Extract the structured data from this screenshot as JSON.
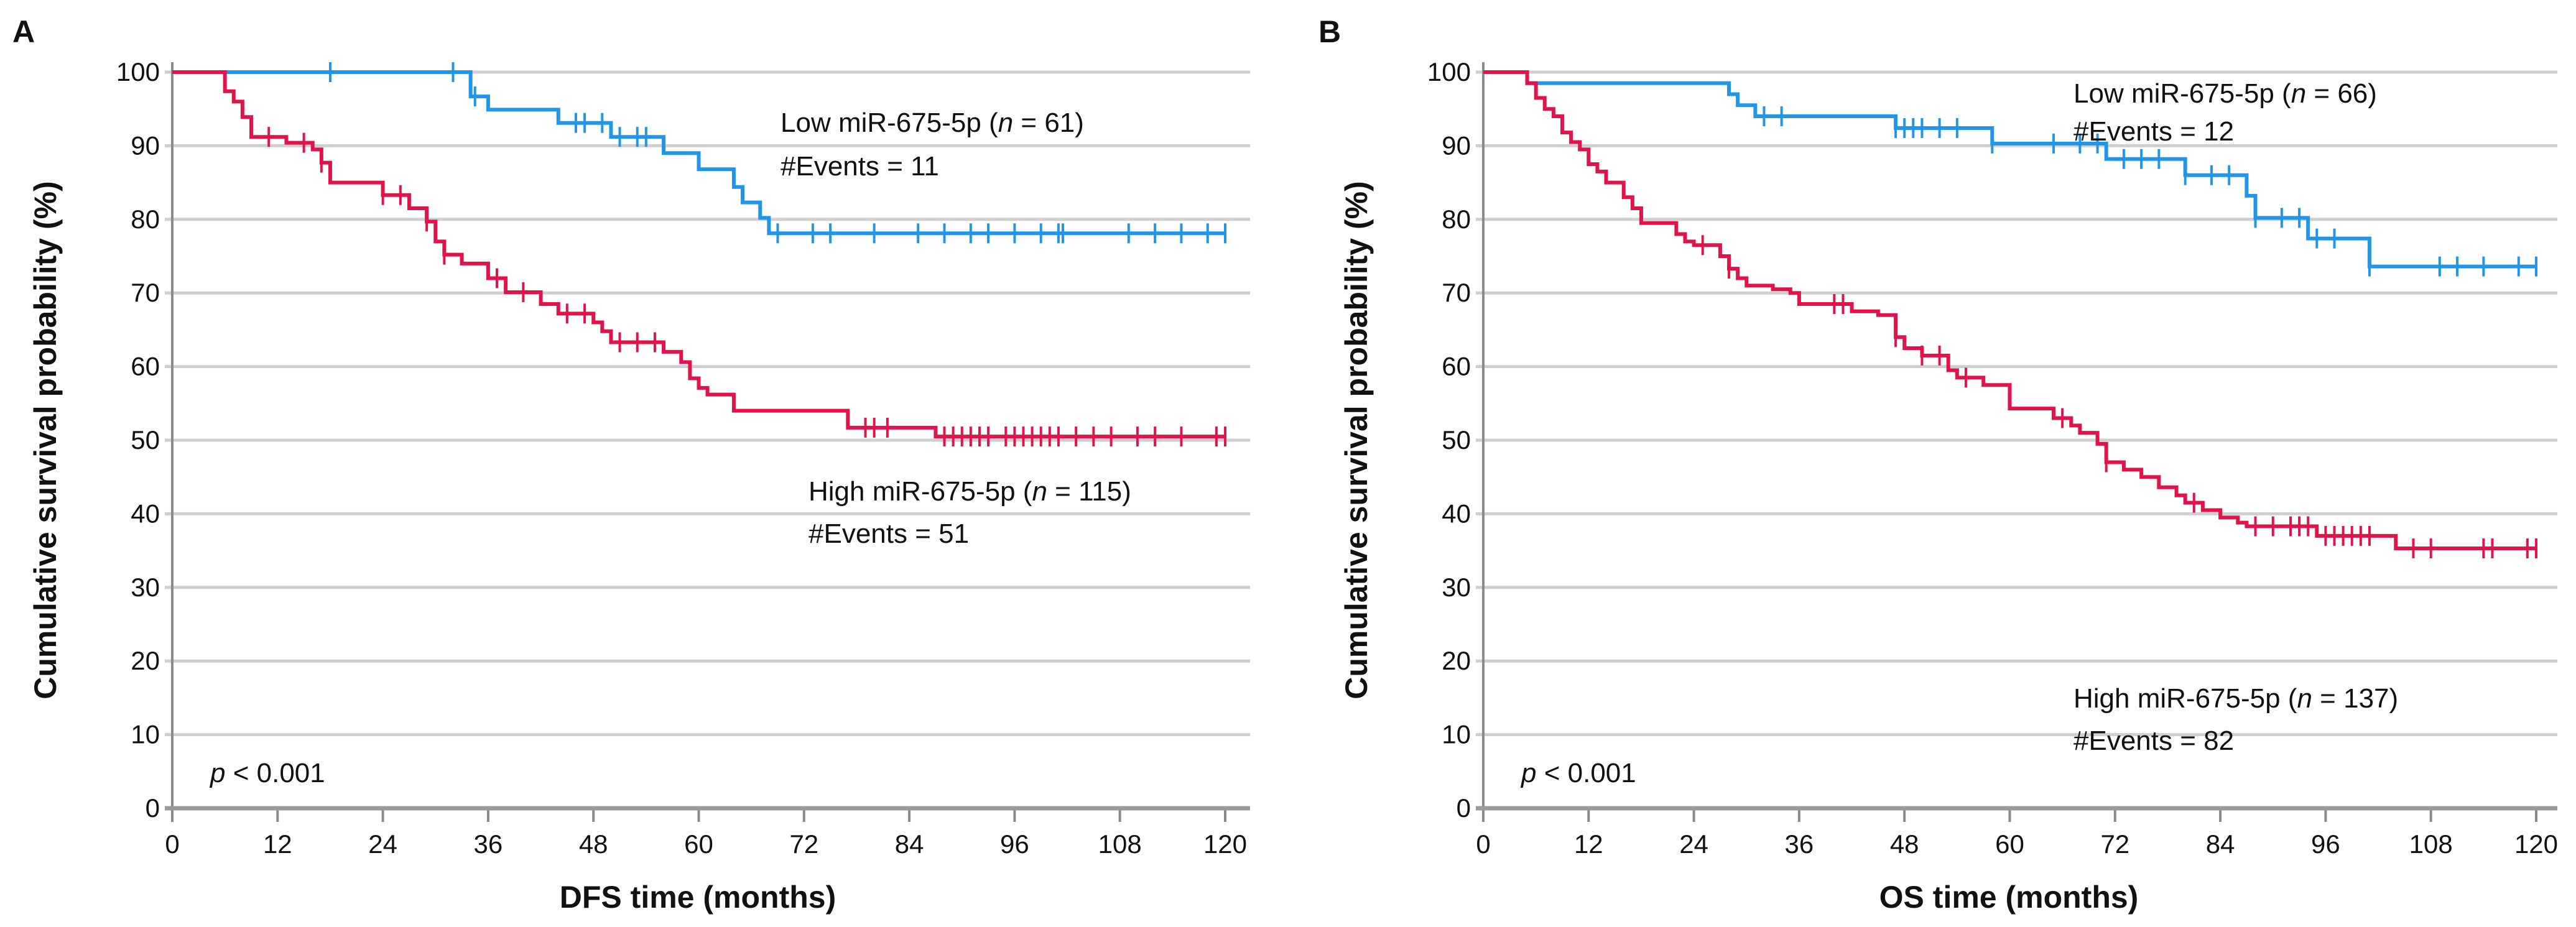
{
  "colors": {
    "low": "#2196e8",
    "high": "#e0134a"
  },
  "chart_data": [
    {
      "type": "line",
      "subtype": "kaplan-meier",
      "panel": "A",
      "xlabel": "DFS time (months)",
      "ylabel": "Cumulative survival probability (%)",
      "xlim": [
        0,
        120
      ],
      "ylim": [
        0,
        100
      ],
      "xticks": [
        "0",
        "12",
        "24",
        "36",
        "48",
        "60",
        "72",
        "84",
        "96",
        "108",
        "120"
      ],
      "yticks": [
        "0",
        "10",
        "20",
        "30",
        "40",
        "50",
        "60",
        "70",
        "80",
        "90",
        "100"
      ],
      "grid": "horizontal",
      "pvalue": {
        "pre": "p",
        "post": " < 0.001"
      },
      "series": [
        {
          "name": "Low miR-675-5p",
          "key": "low",
          "label": {
            "pre": "Low miR-675-5p (",
            "n": "n",
            "post": " = 61)"
          },
          "events_label": "#Events = 11",
          "steps": [
            [
              0,
              100
            ],
            [
              34,
              96.7
            ],
            [
              36,
              94.9
            ],
            [
              44,
              93.1
            ],
            [
              50,
              91.2
            ],
            [
              56,
              89
            ],
            [
              60,
              86.8
            ],
            [
              64,
              84.4
            ],
            [
              65,
              82.3
            ],
            [
              67,
              80.2
            ],
            [
              68,
              78.1
            ],
            [
              120,
              78.1
            ]
          ],
          "censored": [
            18,
            32,
            34.5,
            46,
            47,
            49,
            51,
            53,
            54,
            69,
            73,
            75,
            80,
            85,
            88,
            91,
            93,
            96,
            99,
            101,
            101.5,
            109,
            112,
            115,
            118,
            120
          ]
        },
        {
          "name": "High miR-675-5p",
          "key": "high",
          "label": {
            "pre": "High miR-675-5p (",
            "n": "n",
            "post": " = 115)"
          },
          "events_label": "#Events = 51",
          "steps": [
            [
              0,
              100
            ],
            [
              6,
              97.4
            ],
            [
              7,
              96
            ],
            [
              8,
              93.9
            ],
            [
              9,
              91.2
            ],
            [
              13,
              90.4
            ],
            [
              16,
              89.5
            ],
            [
              17,
              87.7
            ],
            [
              18,
              85
            ],
            [
              24,
              83.3
            ],
            [
              27,
              81.5
            ],
            [
              29,
              79.7
            ],
            [
              30,
              77
            ],
            [
              31,
              75.2
            ],
            [
              33,
              74
            ],
            [
              36,
              72
            ],
            [
              38,
              70.1
            ],
            [
              42,
              68.5
            ],
            [
              44,
              67.2
            ],
            [
              48,
              66
            ],
            [
              49,
              64.8
            ],
            [
              50,
              63.3
            ],
            [
              56,
              62
            ],
            [
              58,
              60.6
            ],
            [
              59,
              58.4
            ],
            [
              60,
              57.1
            ],
            [
              61,
              56.2
            ],
            [
              64,
              54
            ],
            [
              77,
              51.7
            ],
            [
              87,
              50.5
            ],
            [
              120,
              50.5
            ]
          ],
          "censored": [
            11,
            15,
            17,
            24,
            26,
            29,
            31,
            37,
            40,
            45,
            47,
            51,
            53,
            55,
            79,
            80,
            81.5,
            88,
            89,
            90,
            91,
            92,
            93,
            95,
            96,
            97,
            98,
            99,
            100,
            101,
            103,
            105,
            107,
            110,
            112,
            115,
            119,
            120
          ]
        }
      ]
    },
    {
      "type": "line",
      "subtype": "kaplan-meier",
      "panel": "B",
      "xlabel": "OS time (months)",
      "ylabel": "Cumulative survival probability (%)",
      "xlim": [
        0,
        120
      ],
      "ylim": [
        0,
        100
      ],
      "xticks": [
        "0",
        "12",
        "24",
        "36",
        "48",
        "60",
        "72",
        "84",
        "96",
        "108",
        "120"
      ],
      "yticks": [
        "0",
        "10",
        "20",
        "30",
        "40",
        "50",
        "60",
        "70",
        "80",
        "90",
        "100"
      ],
      "grid": "horizontal",
      "pvalue": {
        "pre": "p",
        "post": " < 0.001"
      },
      "series": [
        {
          "name": "Low miR-675-5p",
          "key": "low",
          "label": {
            "pre": "Low miR-675-5p (",
            "n": "n",
            "post": " = 66)"
          },
          "events_label": "#Events = 12",
          "steps": [
            [
              0,
              100
            ],
            [
              5,
              98.5
            ],
            [
              28,
              97
            ],
            [
              29,
              95.5
            ],
            [
              31,
              94
            ],
            [
              47,
              92.4
            ],
            [
              58,
              90.3
            ],
            [
              71,
              88.2
            ],
            [
              80,
              86
            ],
            [
              87,
              83.2
            ],
            [
              88,
              80.2
            ],
            [
              94,
              77.4
            ],
            [
              101,
              73.6
            ],
            [
              120,
              73.6
            ]
          ],
          "censored": [
            32,
            34,
            47,
            48,
            49,
            50,
            52,
            54,
            58,
            65,
            68,
            70,
            73,
            75,
            77,
            80,
            83,
            85,
            88,
            91,
            93,
            95,
            97,
            101,
            109,
            111,
            114,
            118,
            120
          ]
        },
        {
          "name": "High miR-675-5p",
          "key": "high",
          "label": {
            "pre": "High miR-675-5p (",
            "n": "n",
            "post": " = 137)"
          },
          "events_label": "#Events = 82",
          "steps": [
            [
              0,
              100
            ],
            [
              5,
              98.5
            ],
            [
              6,
              96.5
            ],
            [
              7,
              95
            ],
            [
              8,
              94
            ],
            [
              9,
              91.8
            ],
            [
              10,
              90.5
            ],
            [
              11,
              89.5
            ],
            [
              12,
              87.5
            ],
            [
              13,
              86.5
            ],
            [
              14,
              85
            ],
            [
              16,
              83
            ],
            [
              17,
              81.5
            ],
            [
              18,
              79.5
            ],
            [
              22,
              78
            ],
            [
              23,
              77
            ],
            [
              24,
              76.5
            ],
            [
              27,
              75
            ],
            [
              28,
              73.3
            ],
            [
              29,
              72
            ],
            [
              30,
              71
            ],
            [
              33,
              70.5
            ],
            [
              35,
              70
            ],
            [
              36,
              68.5
            ],
            [
              42,
              67.5
            ],
            [
              45,
              67
            ],
            [
              47,
              64
            ],
            [
              48,
              62.5
            ],
            [
              50,
              61.5
            ],
            [
              53,
              59.5
            ],
            [
              54,
              58.5
            ],
            [
              57,
              57.5
            ],
            [
              60,
              54.3
            ],
            [
              65,
              53
            ],
            [
              67,
              52
            ],
            [
              68,
              51
            ],
            [
              70,
              49.5
            ],
            [
              71,
              47
            ],
            [
              73,
              46
            ],
            [
              75,
              45
            ],
            [
              77,
              43.6
            ],
            [
              79,
              42.5
            ],
            [
              80,
              41.5
            ],
            [
              82,
              40.5
            ],
            [
              84,
              39.5
            ],
            [
              86,
              38.8
            ],
            [
              87,
              38.3
            ],
            [
              95,
              37
            ],
            [
              104,
              35.3
            ],
            [
              120,
              35.3
            ]
          ],
          "censored": [
            25,
            28,
            40,
            41,
            47,
            50,
            52,
            55,
            66,
            71,
            81,
            88,
            90,
            92,
            93,
            94,
            96,
            97,
            98,
            99,
            100,
            101,
            106,
            108,
            114,
            115,
            119,
            120
          ]
        }
      ]
    }
  ]
}
